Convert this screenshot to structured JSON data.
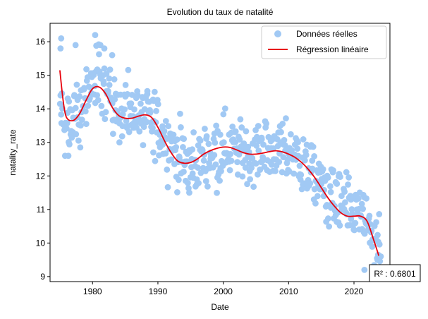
{
  "chart_data": {
    "type": "scatter",
    "title": "Evolution du taux de natalité",
    "xlabel": "Date",
    "ylabel": "natality_rate",
    "xlim": [
      1973.5,
      2025.5
    ],
    "ylim": [
      8.85,
      16.55
    ],
    "x_ticks": [
      1980,
      1990,
      2000,
      2010,
      2020
    ],
    "y_ticks": [
      9,
      10,
      11,
      12,
      13,
      14,
      15,
      16
    ],
    "grid": false,
    "legend_position": "top-right",
    "series": [
      {
        "name": "Données réelles",
        "kind": "scatter",
        "color": "#a1c9f4",
        "anchors": [
          [
            1975.0,
            14.3
          ],
          [
            1976.0,
            13.5
          ],
          [
            1977.0,
            13.6
          ],
          [
            1978.0,
            13.9
          ],
          [
            1979.0,
            14.3
          ],
          [
            1980.0,
            14.7
          ],
          [
            1981.0,
            14.9
          ],
          [
            1982.0,
            14.7
          ],
          [
            1983.0,
            14.3
          ],
          [
            1984.0,
            14.0
          ],
          [
            1985.0,
            13.9
          ],
          [
            1986.0,
            13.9
          ],
          [
            1987.0,
            13.8
          ],
          [
            1988.0,
            13.8
          ],
          [
            1989.0,
            13.7
          ],
          [
            1990.0,
            13.5
          ],
          [
            1991.0,
            13.2
          ],
          [
            1992.0,
            13.0
          ],
          [
            1993.0,
            12.6
          ],
          [
            1994.0,
            12.4
          ],
          [
            1995.0,
            12.3
          ],
          [
            1996.0,
            12.4
          ],
          [
            1997.0,
            12.6
          ],
          [
            1998.0,
            12.7
          ],
          [
            1999.0,
            12.8
          ],
          [
            2000.0,
            12.9
          ],
          [
            2001.0,
            12.9
          ],
          [
            2002.0,
            12.8
          ],
          [
            2003.0,
            12.7
          ],
          [
            2004.0,
            12.7
          ],
          [
            2005.0,
            12.7
          ],
          [
            2006.0,
            12.7
          ],
          [
            2007.0,
            12.8
          ],
          [
            2008.0,
            12.8
          ],
          [
            2009.0,
            12.8
          ],
          [
            2010.0,
            12.6
          ],
          [
            2011.0,
            12.6
          ],
          [
            2012.0,
            12.4
          ],
          [
            2013.0,
            12.2
          ],
          [
            2014.0,
            12.0
          ],
          [
            2015.0,
            11.8
          ],
          [
            2016.0,
            11.5
          ],
          [
            2017.0,
            11.3
          ],
          [
            2018.0,
            11.1
          ],
          [
            2019.0,
            11.0
          ],
          [
            2020.0,
            10.9
          ],
          [
            2021.0,
            10.8
          ],
          [
            2022.0,
            10.6
          ],
          [
            2023.0,
            10.1
          ],
          [
            2024.0,
            9.8
          ]
        ],
        "points_per_year": 12,
        "spread": 0.45,
        "outliers": [
          [
            1975.2,
            16.1
          ],
          [
            1975.1,
            15.8
          ],
          [
            1980.4,
            16.2
          ],
          [
            1981.2,
            15.9
          ],
          [
            1981.8,
            15.8
          ],
          [
            1983.0,
            15.6
          ],
          [
            1977.4,
            15.9
          ],
          [
            2021.6,
            9.2
          ],
          [
            1994.8,
            11.5
          ],
          [
            1976.3,
            12.6
          ],
          [
            2004.1,
            11.9
          ],
          [
            1989.3,
            12.7
          ],
          [
            2024.1,
            9.6
          ],
          [
            1975.8,
            12.6
          ],
          [
            2023.6,
            9.5
          ]
        ]
      },
      {
        "name": "Régression linéaire",
        "kind": "line",
        "color": "#e8000b",
        "x": [
          1975.0,
          1975.5,
          1976.0,
          1977.0,
          1978.0,
          1979.0,
          1980.0,
          1981.0,
          1982.0,
          1983.0,
          1984.0,
          1985.0,
          1986.0,
          1987.0,
          1988.0,
          1989.0,
          1990.0,
          1991.0,
          1992.0,
          1993.0,
          1994.0,
          1995.0,
          1996.0,
          1997.0,
          1998.0,
          1999.0,
          2000.0,
          2001.0,
          2002.0,
          2003.0,
          2004.0,
          2005.0,
          2006.0,
          2007.0,
          2008.0,
          2009.0,
          2010.0,
          2011.0,
          2012.0,
          2013.0,
          2014.0,
          2015.0,
          2016.0,
          2017.0,
          2018.0,
          2019.0,
          2020.0,
          2021.0,
          2022.0,
          2023.0,
          2023.8
        ],
        "y": [
          15.15,
          14.25,
          13.75,
          13.65,
          13.85,
          14.25,
          14.6,
          14.65,
          14.45,
          14.05,
          13.8,
          13.72,
          13.72,
          13.78,
          13.82,
          13.75,
          13.45,
          13.05,
          12.7,
          12.45,
          12.38,
          12.4,
          12.5,
          12.65,
          12.75,
          12.82,
          12.86,
          12.85,
          12.78,
          12.7,
          12.65,
          12.65,
          12.68,
          12.72,
          12.75,
          12.72,
          12.65,
          12.55,
          12.4,
          12.2,
          11.95,
          11.65,
          11.35,
          11.1,
          10.9,
          10.8,
          10.8,
          10.8,
          10.65,
          10.1,
          9.62
        ]
      }
    ],
    "annotation": "R² : 0.6801"
  }
}
